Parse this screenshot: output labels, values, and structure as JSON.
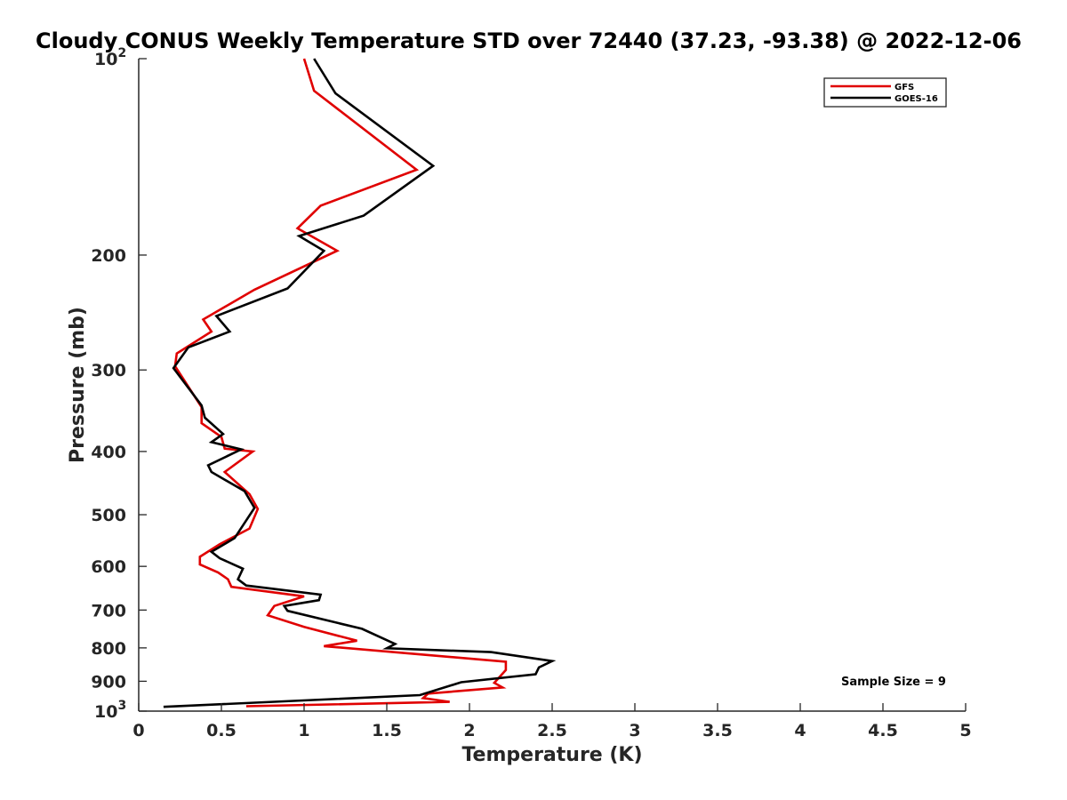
{
  "chart_data": {
    "type": "line",
    "title": "Cloudy CONUS Weekly Temperature STD over 72440 (37.23, -93.38) @ 2022-12-06",
    "xlabel": "Temperature (K)",
    "ylabel": "Pressure (mb)",
    "xlim": [
      0,
      5
    ],
    "ylim": [
      100,
      1000
    ],
    "yscale": "log",
    "y_reversed": true,
    "x_ticks": [
      0,
      0.5,
      1,
      1.5,
      2,
      2.5,
      3,
      3.5,
      4,
      4.5,
      5
    ],
    "x_tick_labels": [
      "0",
      "0.5",
      "1",
      "1.5",
      "2",
      "2.5",
      "3",
      "3.5",
      "4",
      "4.5",
      "5"
    ],
    "y_ticks": [
      100,
      200,
      300,
      400,
      500,
      600,
      700,
      800,
      900,
      1000
    ],
    "y_tick_labels": [
      {
        "base": "10",
        "exp": "2"
      },
      {
        "base": "200",
        "exp": ""
      },
      {
        "base": "300",
        "exp": ""
      },
      {
        "base": "400",
        "exp": ""
      },
      {
        "base": "500",
        "exp": ""
      },
      {
        "base": "600",
        "exp": ""
      },
      {
        "base": "700",
        "exp": ""
      },
      {
        "base": "800",
        "exp": ""
      },
      {
        "base": "900",
        "exp": ""
      },
      {
        "base": "10",
        "exp": "3"
      }
    ],
    "grid": false,
    "legend_position": "top-right",
    "annotation": "Sample Size = 9",
    "series": [
      {
        "name": "GFS",
        "color": "#e00000",
        "x": [
          1.0,
          1.06,
          1.68,
          1.1,
          0.96,
          1.2,
          0.7,
          0.39,
          0.44,
          0.23,
          0.22,
          0.38,
          0.38,
          0.5,
          0.52,
          0.69,
          0.52,
          0.67,
          0.72,
          0.67,
          0.49,
          0.37,
          0.37,
          0.48,
          0.54,
          0.56,
          1.0,
          0.82,
          0.78,
          1.0,
          1.32,
          1.12,
          2.22,
          2.22,
          2.15,
          2.2,
          1.75,
          1.72,
          1.88,
          0.65
        ],
        "y": [
          100,
          112,
          148,
          168,
          182,
          197,
          226,
          251,
          262,
          283,
          296,
          342,
          362,
          380,
          396,
          400,
          430,
          465,
          490,
          525,
          555,
          580,
          596,
          613,
          628,
          645,
          667,
          690,
          713,
          743,
          780,
          795,
          840,
          865,
          905,
          920,
          940,
          955,
          968,
          983
        ]
      },
      {
        "name": "GOES-16",
        "color": "#000000",
        "x": [
          1.06,
          1.19,
          1.78,
          1.36,
          0.97,
          1.12,
          0.9,
          0.47,
          0.55,
          0.3,
          0.21,
          0.38,
          0.4,
          0.51,
          0.44,
          0.62,
          0.42,
          0.44,
          0.64,
          0.7,
          0.58,
          0.44,
          0.49,
          0.63,
          0.6,
          0.65,
          1.1,
          1.09,
          0.88,
          0.9,
          1.35,
          1.55,
          1.5,
          2.13,
          2.5,
          2.42,
          2.4,
          1.95,
          1.7,
          0.15
        ],
        "y": [
          100,
          113,
          146,
          174,
          187,
          197,
          225,
          248,
          262,
          277,
          298,
          340,
          355,
          376,
          387,
          397,
          420,
          430,
          460,
          488,
          543,
          570,
          583,
          605,
          628,
          642,
          663,
          676,
          690,
          702,
          748,
          789,
          801,
          812,
          838,
          857,
          878,
          903,
          945,
          985
        ]
      }
    ]
  }
}
